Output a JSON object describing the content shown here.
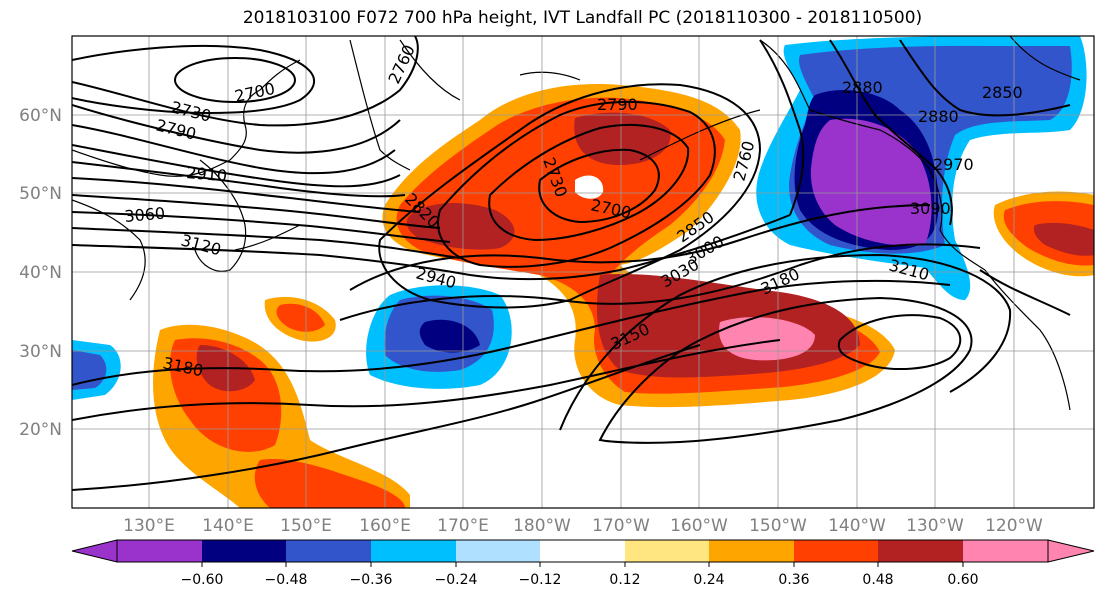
{
  "title": "2018103100 F072 700 hPa height, IVT Landfall PC (2018110300 - 2018110500)",
  "map": {
    "lat_labels": [
      "60°N",
      "50°N",
      "40°N",
      "30°N",
      "20°N"
    ],
    "lon_labels": [
      "130°E",
      "140°E",
      "150°E",
      "160°E",
      "170°E",
      "180°W",
      "170°W",
      "160°W",
      "150°W",
      "140°W",
      "130°W",
      "120°W"
    ]
  },
  "contour_labels": {
    "c2700a": "2700",
    "c2730a": "2730",
    "c2760": "2760",
    "c2790a": "2790",
    "c2910": "2910",
    "c3060": "3060",
    "c3120": "3120",
    "c2820": "2820",
    "c2790b": "2790",
    "c2730b": "2730",
    "c2700b": "2700",
    "c2850a": "2850",
    "c3000": "3000",
    "c3030": "3030",
    "c2940": "2940",
    "c3150": "3150",
    "c3180a": "3180",
    "c3180b": "3180",
    "c2880a": "2880",
    "c2880b": "2880",
    "c2850b": "2850",
    "c2970": "2970",
    "c3090": "3090",
    "c3210": "3210",
    "c2760b": "2760"
  },
  "colorbar": {
    "colors": [
      "#9933cc",
      "#000080",
      "#3355cc",
      "#00bfff",
      "#b0e0ff",
      "#ffffff",
      "#ffe680",
      "#ffa500",
      "#ff4000",
      "#b22222",
      "#ff85b0"
    ],
    "tick_labels": [
      "−0.60",
      "−0.48",
      "−0.36",
      "−0.24",
      "−0.12",
      "0.12",
      "0.24",
      "0.36",
      "0.48",
      "0.60"
    ]
  }
}
